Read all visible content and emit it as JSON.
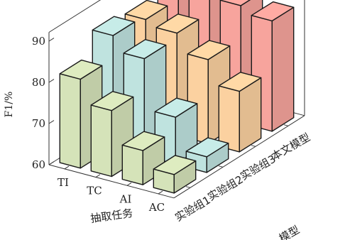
{
  "chart_data": {
    "type": "bar",
    "ylabel": "F1/%",
    "xlabel": "抽取任务",
    "zlabel": "模型",
    "x_categories": [
      "TI",
      "TC",
      "AI",
      "AC"
    ],
    "groups": [
      "实验组1",
      "实验组2",
      "实验组3",
      "本文模型"
    ],
    "ylim": [
      60,
      90
    ],
    "yticks": [
      60,
      70,
      80,
      90
    ],
    "grid": false,
    "series": [
      {
        "values": [
          81.6,
          76.0,
          68.3,
          64.5
        ]
      },
      {
        "values": [
          87.2,
          83.6,
          71.4,
          63.8
        ]
      },
      {
        "values": [
          86.1,
          84.8,
          80.4,
          74.7
        ]
      },
      {
        "values": [
          93.0,
          89.6,
          88.5,
          86.8
        ]
      }
    ],
    "colors": {
      "series": [
        "#d5e3b9",
        "#bfe3df",
        "#fbd1a0",
        "#f7a49d"
      ],
      "bar_outline": "#1a1a1a",
      "box": "#333333"
    }
  }
}
